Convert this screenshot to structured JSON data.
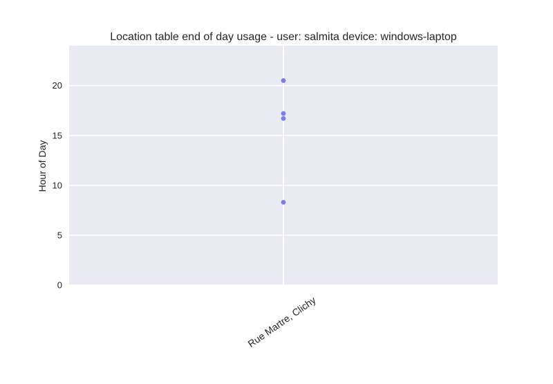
{
  "chart_data": {
    "type": "scatter",
    "title": "Location table end of day usage -  user: salmita device: windows-laptop",
    "xlabel": "",
    "ylabel": "Hour of Day",
    "categories": [
      "Rue Martre, Clichy"
    ],
    "yticks": [
      0,
      5,
      10,
      15,
      20
    ],
    "ylim": [
      0,
      24
    ],
    "grid": true,
    "legend": "none",
    "series": [
      {
        "points": [
          {
            "x": "Rue Martre, Clichy",
            "y": 20.5
          },
          {
            "x": "Rue Martre, Clichy",
            "y": 17.2
          },
          {
            "x": "Rue Martre, Clichy",
            "y": 16.7
          },
          {
            "x": "Rue Martre, Clichy",
            "y": 8.3
          }
        ]
      }
    ],
    "colors": {
      "background": "#eaeaf2",
      "grid": "#ffffff",
      "marker": "#7b7bf0"
    }
  }
}
